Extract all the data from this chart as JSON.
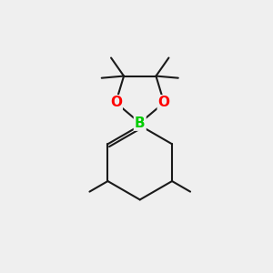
{
  "background_color": "#efefef",
  "bond_color": "#1a1a1a",
  "bond_width": 1.5,
  "atom_B": {
    "label": "B",
    "color": "#00cc00",
    "fontsize": 11,
    "fontweight": "bold"
  },
  "atom_O": {
    "label": "O",
    "color": "#ff0000",
    "fontsize": 11,
    "fontweight": "bold"
  },
  "xlim": [
    -0.75,
    0.75
  ],
  "ylim": [
    -0.85,
    0.85
  ]
}
